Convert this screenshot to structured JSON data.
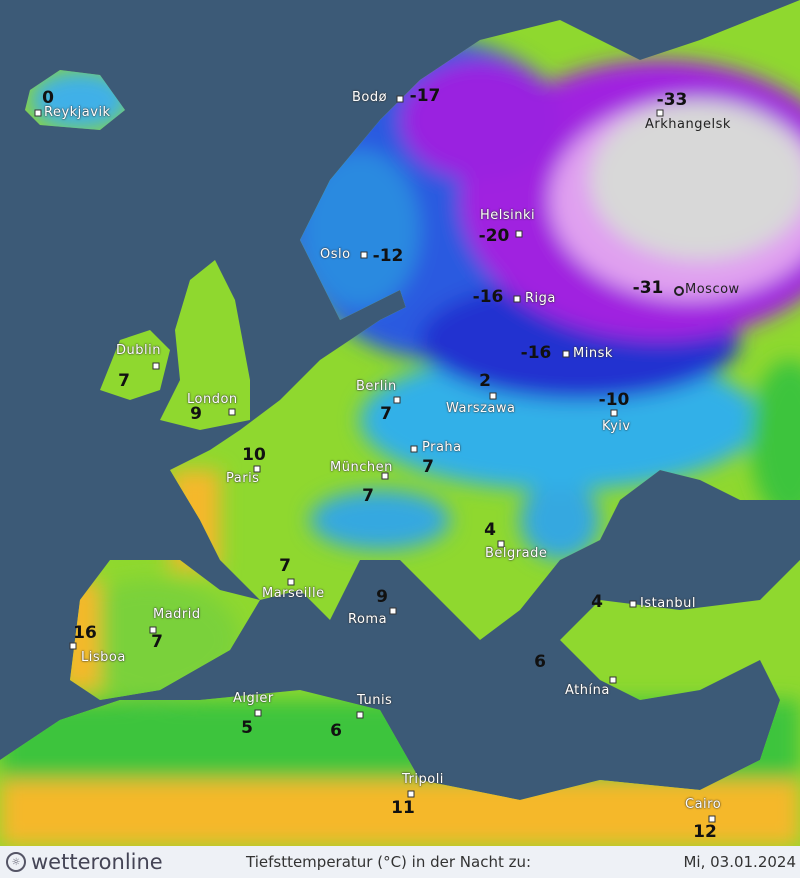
{
  "map": {
    "colors": {
      "sea": "#3c5a77",
      "warm": "#f5b82a",
      "mild": "#8fd82f",
      "cool": "#29c44a",
      "cold": "#2aa0e0",
      "frost": "#2030d0",
      "severe": "#a020e0",
      "extreme": "#d8d8d8"
    },
    "cities": [
      {
        "name": "Reykjavik",
        "value": "0"
      },
      {
        "name": "Bodø",
        "value": "-17"
      },
      {
        "name": "Arkhangelsk",
        "value": "-33"
      },
      {
        "name": "Helsinki",
        "value": "-20"
      },
      {
        "name": "Oslo",
        "value": "-12"
      },
      {
        "name": "Riga",
        "value": "-16"
      },
      {
        "name": "Moscow",
        "value": "-31"
      },
      {
        "name": "Dublin",
        "value": "7"
      },
      {
        "name": "Minsk",
        "value": "-16"
      },
      {
        "name": "Berlin",
        "value": "7"
      },
      {
        "name": "Warszawa",
        "value": "2"
      },
      {
        "name": "London",
        "value": "9"
      },
      {
        "name": "Kyiv",
        "value": "-10"
      },
      {
        "name": "Paris",
        "value": "10"
      },
      {
        "name": "Praha",
        "value": "7"
      },
      {
        "name": "München",
        "value": "7"
      },
      {
        "name": "Belgrade",
        "value": "4"
      },
      {
        "name": "Istanbul",
        "value": "4"
      },
      {
        "name": "Marseille",
        "value": "7"
      },
      {
        "name": "Madrid",
        "value": "7"
      },
      {
        "name": "Roma",
        "value": "9"
      },
      {
        "name": "Lisboa",
        "value": "16"
      },
      {
        "name": "Athína",
        "value": "6"
      },
      {
        "name": "Algier",
        "value": "5"
      },
      {
        "name": "Tunis",
        "value": "6"
      },
      {
        "name": "Tripoli",
        "value": "11"
      },
      {
        "name": "Cairo",
        "value": "12"
      }
    ]
  },
  "footer": {
    "logo": "wetteronline",
    "caption": "Tiefsttemperatur (°C) in der Nacht zu:",
    "date": "Mi, 03.01.2024"
  }
}
